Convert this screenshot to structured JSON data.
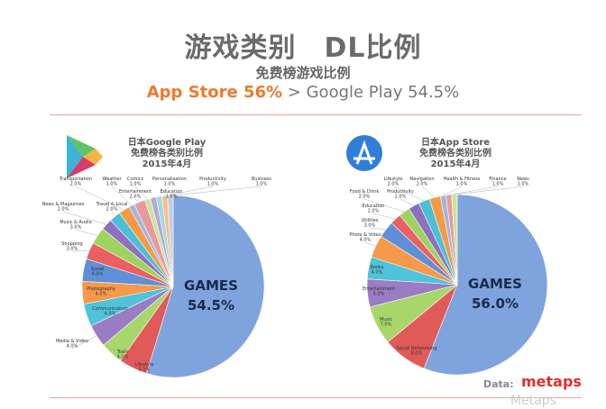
{
  "header": {
    "title": "游戏类别　DL比例",
    "subtitle": "免费榜游戏比例",
    "cmp_a": "App Store 56%",
    "cmp_sep": " > ",
    "cmp_b": "Google Play 54.5%"
  },
  "footer": {
    "data_label": "Data:",
    "logo": "metaps",
    "watermark": "Metaps"
  },
  "chart_data": [
    {
      "type": "pie",
      "title": [
        "日本Google Play",
        "免费榜各类别比例",
        "2015年4月"
      ],
      "labels": [
        "GAMES",
        "Lifestyle",
        "Tools",
        "Media & Video",
        "Communication",
        "Photography",
        "Social",
        "Shopping",
        "Music & Audio",
        "News & Magazines",
        "Travel & Local",
        "Transportation",
        "Weather",
        "Entertainment",
        "Comics",
        "Education",
        "Personalisation",
        "Productivity",
        "Business"
      ],
      "values": [
        54.5,
        5.1,
        4.0,
        4.0,
        4.0,
        4.0,
        4.0,
        3.0,
        3.0,
        2.0,
        2.0,
        2.0,
        1.0,
        2.0,
        1.0,
        1.0,
        1.0,
        1.0,
        1.0
      ]
    },
    {
      "type": "pie",
      "title": [
        "日本App Store",
        "免费榜各类别比例",
        "2015年4月"
      ],
      "labels": [
        "GAMES",
        "Social Networking",
        "Music",
        "Entertainment",
        "Books",
        "Photo & Video",
        "Utilities",
        "Education",
        "Food & Drink",
        "Productivity",
        "Lifestyle",
        "Navigation",
        "Health & Fitness",
        "Finance",
        "News"
      ],
      "values": [
        56.0,
        8.0,
        7.0,
        5.0,
        4.0,
        4.0,
        3.0,
        2.0,
        2.0,
        2.0,
        2.0,
        2.0,
        1.0,
        1.0,
        1.0
      ]
    }
  ],
  "colors": [
    "#7fa3dc",
    "#e05a5a",
    "#a8d66a",
    "#9a7cc4",
    "#4fc3d9",
    "#f5994a",
    "#5f8fd6",
    "#ea5f5f",
    "#9ed35f",
    "#8e6fc0",
    "#4bbfd6",
    "#f59a45",
    "#9fb6e0",
    "#e89a9a",
    "#c8e59a",
    "#b8a4d8",
    "#9ed9e8",
    "#f7c08a",
    "#c0cde6"
  ]
}
